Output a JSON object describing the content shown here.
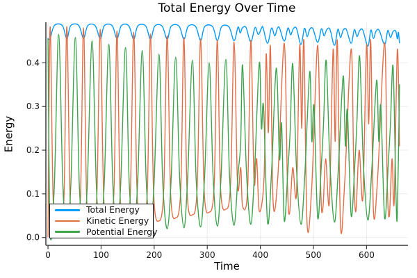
{
  "chart_data": {
    "type": "line",
    "title": "Total Energy Over Time",
    "xlabel": "Time",
    "ylabel": "Energy",
    "xlim": [
      -4,
      678
    ],
    "ylim": [
      -0.018,
      0.493
    ],
    "grid": true,
    "legend_position": "bottom-left",
    "x_ticks": {
      "values": [
        0,
        100,
        200,
        300,
        400,
        500,
        600
      ],
      "labels": [
        "0",
        "100",
        "200",
        "300",
        "400",
        "500",
        "600"
      ]
    },
    "y_ticks": {
      "values": [
        0.0,
        0.1,
        0.2,
        0.3,
        0.4
      ],
      "labels": [
        "0.0",
        "0.1",
        "0.2",
        "0.3",
        "0.4"
      ]
    },
    "colors": {
      "grid": "rgba(0,0,0,0.08)",
      "spine": "#3a3a3a",
      "tick_text": "#111111"
    },
    "series": [
      {
        "name": "Total Energy",
        "color": "#009AFA",
        "points": [
          [
            0,
            0.456
          ],
          [
            4,
            0.4555
          ],
          [
            12,
            0.4855
          ],
          [
            27,
            0.4855
          ],
          [
            35.5,
            0.4555
          ],
          [
            43,
            0.4855
          ],
          [
            58,
            0.4855
          ],
          [
            67,
            0.456
          ],
          [
            75,
            0.4855
          ],
          [
            89,
            0.485
          ],
          [
            98.5,
            0.4555
          ],
          [
            106,
            0.485
          ],
          [
            121,
            0.485
          ],
          [
            130,
            0.4555
          ],
          [
            138,
            0.485
          ],
          [
            152,
            0.485
          ],
          [
            161.5,
            0.454
          ],
          [
            169,
            0.4845
          ],
          [
            184,
            0.4845
          ],
          [
            193,
            0.454
          ],
          [
            201,
            0.484
          ],
          [
            215,
            0.484
          ],
          [
            224.5,
            0.454
          ],
          [
            232,
            0.484
          ],
          [
            247,
            0.484
          ],
          [
            256,
            0.454
          ],
          [
            264,
            0.4835
          ],
          [
            278,
            0.4835
          ],
          [
            287.5,
            0.451
          ],
          [
            295,
            0.483
          ],
          [
            310,
            0.483
          ],
          [
            319,
            0.451
          ],
          [
            327,
            0.483
          ],
          [
            341,
            0.482
          ],
          [
            350.5,
            0.451
          ],
          [
            358,
            0.482
          ],
          [
            362,
            0.468
          ],
          [
            366,
            0.48
          ],
          [
            373,
            0.481
          ],
          [
            382,
            0.448
          ],
          [
            390,
            0.481
          ],
          [
            396,
            0.465
          ],
          [
            402,
            0.479
          ],
          [
            405,
            0.481
          ],
          [
            413.5,
            0.445
          ],
          [
            421,
            0.48
          ],
          [
            427,
            0.462
          ],
          [
            432,
            0.479
          ],
          [
            436,
            0.48
          ],
          [
            445,
            0.45
          ],
          [
            452,
            0.48
          ],
          [
            457,
            0.464
          ],
          [
            462,
            0.478
          ],
          [
            468,
            0.479
          ],
          [
            476.5,
            0.442
          ],
          [
            483,
            0.479
          ],
          [
            488,
            0.46
          ],
          [
            493,
            0.477
          ],
          [
            499,
            0.478
          ],
          [
            508,
            0.447
          ],
          [
            515,
            0.478
          ],
          [
            520,
            0.462
          ],
          [
            525,
            0.476
          ],
          [
            531,
            0.477
          ],
          [
            539.5,
            0.44
          ],
          [
            546,
            0.477
          ],
          [
            551,
            0.458
          ],
          [
            556,
            0.475
          ],
          [
            562,
            0.476
          ],
          [
            571,
            0.445
          ],
          [
            577,
            0.476
          ],
          [
            582,
            0.46
          ],
          [
            587,
            0.474
          ],
          [
            593,
            0.475
          ],
          [
            602.5,
            0.438
          ],
          [
            608,
            0.475
          ],
          [
            613,
            0.456
          ],
          [
            618,
            0.473
          ],
          [
            624,
            0.474
          ],
          [
            634,
            0.442
          ],
          [
            640,
            0.474
          ],
          [
            645,
            0.458
          ],
          [
            650,
            0.472
          ],
          [
            655,
            0.473
          ],
          [
            658,
            0.455
          ],
          [
            660,
            0.47
          ],
          [
            662,
            0.446
          ]
        ]
      },
      {
        "name": "Kinetic Energy",
        "color": "#E26E47",
        "points": [
          [
            0,
            0.002
          ],
          [
            4,
            0.482
          ],
          [
            10,
            0.08
          ],
          [
            20,
            0.018
          ],
          [
            30,
            0.09
          ],
          [
            35.5,
            0.483
          ],
          [
            42,
            0.08
          ],
          [
            51.5,
            0.02
          ],
          [
            61,
            0.09
          ],
          [
            67,
            0.48
          ],
          [
            73,
            0.085
          ],
          [
            83,
            0.022
          ],
          [
            92,
            0.095
          ],
          [
            98.5,
            0.477
          ],
          [
            105,
            0.09
          ],
          [
            114.5,
            0.025
          ],
          [
            124,
            0.1
          ],
          [
            130,
            0.473
          ],
          [
            136,
            0.09
          ],
          [
            146,
            0.028
          ],
          [
            155,
            0.1
          ],
          [
            161.5,
            0.47
          ],
          [
            168,
            0.095
          ],
          [
            177.5,
            0.032
          ],
          [
            187,
            0.105
          ],
          [
            193,
            0.466
          ],
          [
            199,
            0.1
          ],
          [
            209,
            0.038
          ],
          [
            218,
            0.11
          ],
          [
            224.5,
            0.462
          ],
          [
            231,
            0.1
          ],
          [
            240.5,
            0.045
          ],
          [
            250,
            0.11
          ],
          [
            256,
            0.458
          ],
          [
            262,
            0.105
          ],
          [
            272,
            0.052
          ],
          [
            281,
            0.115
          ],
          [
            287.5,
            0.455
          ],
          [
            294,
            0.11
          ],
          [
            303.5,
            0.058
          ],
          [
            313,
            0.12
          ],
          [
            319,
            0.452
          ],
          [
            325,
            0.115
          ],
          [
            335,
            0.065
          ],
          [
            344,
            0.125
          ],
          [
            350.5,
            0.448
          ],
          [
            357,
            0.12
          ],
          [
            363,
            0.16
          ],
          [
            366.5,
            0.072
          ],
          [
            376,
            0.11
          ],
          [
            382,
            0.452
          ],
          [
            388,
            0.13
          ],
          [
            393,
            0.18
          ],
          [
            398,
            0.06
          ],
          [
            407,
            0.14
          ],
          [
            411,
            0.42
          ],
          [
            415,
            0.24
          ],
          [
            419,
            0.438
          ],
          [
            424,
            0.08
          ],
          [
            433,
            0.14
          ],
          [
            445,
            0.445
          ],
          [
            451,
            0.12
          ],
          [
            455,
            0.055
          ],
          [
            461,
            0.16
          ],
          [
            468,
            0.1
          ],
          [
            474,
            0.44
          ],
          [
            478,
            0.25
          ],
          [
            482,
            0.45
          ],
          [
            488,
            0.03
          ],
          [
            497,
            0.12
          ],
          [
            508,
            0.44
          ],
          [
            514,
            0.1
          ],
          [
            518,
            0.07
          ],
          [
            523,
            0.18
          ],
          [
            530,
            0.08
          ],
          [
            537,
            0.43
          ],
          [
            541,
            0.22
          ],
          [
            545,
            0.45
          ],
          [
            551,
            0.025
          ],
          [
            559,
            0.13
          ],
          [
            571,
            0.432
          ],
          [
            576,
            0.15
          ],
          [
            580,
            0.06
          ],
          [
            586,
            0.2
          ],
          [
            593,
            0.09
          ],
          [
            600,
            0.44
          ],
          [
            604,
            0.26
          ],
          [
            608,
            0.45
          ],
          [
            613,
            0.06
          ],
          [
            621,
            0.14
          ],
          [
            634,
            0.446
          ],
          [
            639,
            0.12
          ],
          [
            643,
            0.05
          ],
          [
            648,
            0.18
          ],
          [
            652,
            0.08
          ],
          [
            658,
            0.43
          ],
          [
            662,
            0.21
          ]
        ]
      },
      {
        "name": "Potential Energy",
        "color": "#3DA44D",
        "points": [
          [
            0,
            0.455
          ],
          [
            4,
            0.012
          ],
          [
            12,
            0.12
          ],
          [
            20,
            0.465
          ],
          [
            28,
            0.12
          ],
          [
            35.5,
            0.012
          ],
          [
            43,
            0.12
          ],
          [
            51.5,
            0.458
          ],
          [
            59,
            0.12
          ],
          [
            67,
            0.013
          ],
          [
            74,
            0.12
          ],
          [
            83,
            0.45
          ],
          [
            91,
            0.12
          ],
          [
            98.5,
            0.014
          ],
          [
            106,
            0.125
          ],
          [
            114.5,
            0.442
          ],
          [
            122,
            0.125
          ],
          [
            130,
            0.015
          ],
          [
            137,
            0.125
          ],
          [
            146,
            0.435
          ],
          [
            153,
            0.125
          ],
          [
            161.5,
            0.016
          ],
          [
            169,
            0.13
          ],
          [
            177.5,
            0.428
          ],
          [
            185,
            0.13
          ],
          [
            193,
            0.018
          ],
          [
            200,
            0.13
          ],
          [
            209,
            0.42
          ],
          [
            216,
            0.13
          ],
          [
            224.5,
            0.02
          ],
          [
            232,
            0.135
          ],
          [
            240.5,
            0.413
          ],
          [
            248,
            0.135
          ],
          [
            256,
            0.022
          ],
          [
            263,
            0.135
          ],
          [
            272,
            0.406
          ],
          [
            279,
            0.135
          ],
          [
            287.5,
            0.024
          ],
          [
            295,
            0.14
          ],
          [
            303.5,
            0.4
          ],
          [
            311,
            0.14
          ],
          [
            319,
            0.026
          ],
          [
            326,
            0.14
          ],
          [
            335,
            0.408
          ],
          [
            342,
            0.14
          ],
          [
            350.5,
            0.028
          ],
          [
            358,
            0.145
          ],
          [
            363,
            0.22
          ],
          [
            366.5,
            0.395
          ],
          [
            374,
            0.145
          ],
          [
            382,
            0.03
          ],
          [
            389,
            0.15
          ],
          [
            398,
            0.4
          ],
          [
            402,
            0.25
          ],
          [
            406,
            0.3
          ],
          [
            413.5,
            0.035
          ],
          [
            421,
            0.15
          ],
          [
            430,
            0.388
          ],
          [
            436,
            0.18
          ],
          [
            440,
            0.26
          ],
          [
            445,
            0.038
          ],
          [
            452,
            0.16
          ],
          [
            456,
            0.24
          ],
          [
            461,
            0.398
          ],
          [
            468,
            0.16
          ],
          [
            476.5,
            0.03
          ],
          [
            484,
            0.15
          ],
          [
            493,
            0.38
          ],
          [
            497,
            0.22
          ],
          [
            501,
            0.3
          ],
          [
            508,
            0.045
          ],
          [
            515,
            0.17
          ],
          [
            519,
            0.26
          ],
          [
            524,
            0.405
          ],
          [
            531,
            0.17
          ],
          [
            539.5,
            0.035
          ],
          [
            547,
            0.16
          ],
          [
            556,
            0.37
          ],
          [
            560,
            0.21
          ],
          [
            564,
            0.29
          ],
          [
            571,
            0.05
          ],
          [
            578,
            0.17
          ],
          [
            582,
            0.27
          ],
          [
            587,
            0.415
          ],
          [
            594,
            0.17
          ],
          [
            602.5,
            0.04
          ],
          [
            610,
            0.16
          ],
          [
            619,
            0.36
          ],
          [
            623,
            0.22
          ],
          [
            627,
            0.3
          ],
          [
            634,
            0.045
          ],
          [
            641,
            0.17
          ],
          [
            645,
            0.26
          ],
          [
            650,
            0.392
          ],
          [
            655,
            0.12
          ],
          [
            658,
            0.05
          ],
          [
            662,
            0.35
          ]
        ]
      }
    ]
  }
}
